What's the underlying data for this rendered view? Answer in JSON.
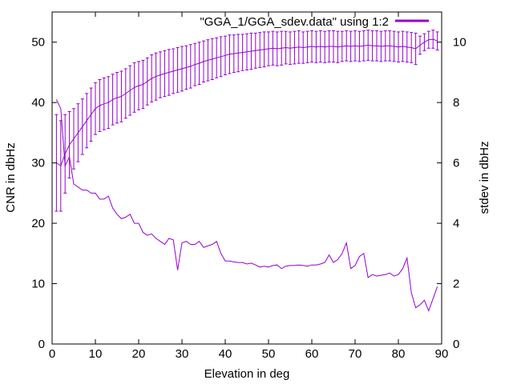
{
  "chart_data": {
    "type": "line",
    "title": "",
    "xlabel": "Elevation in deg",
    "ylabel": "CNR in dbHz",
    "y2label": "stdev in dbHz",
    "xlim": [
      0,
      90
    ],
    "ylim": [
      0,
      55
    ],
    "y2lim": [
      0,
      11
    ],
    "xticks": [
      0,
      10,
      20,
      30,
      40,
      50,
      60,
      70,
      80,
      90
    ],
    "yticks": [
      0,
      10,
      20,
      30,
      40,
      50
    ],
    "y2ticks": [
      0,
      2,
      4,
      6,
      8,
      10
    ],
    "grid": false,
    "legend_position": "top-right",
    "color": "#9400d3",
    "series": [
      {
        "name": "\"GGA_1/GGA_sdev.data\" using 1:2",
        "style": "errorbars",
        "axis": "y1",
        "x": [
          1,
          2,
          3,
          4,
          5,
          6,
          7,
          8,
          9,
          10,
          11,
          12,
          13,
          14,
          15,
          16,
          17,
          18,
          19,
          20,
          21,
          22,
          23,
          24,
          25,
          26,
          27,
          28,
          29,
          30,
          31,
          32,
          33,
          34,
          35,
          36,
          37,
          38,
          39,
          40,
          41,
          42,
          43,
          44,
          45,
          46,
          47,
          48,
          49,
          50,
          51,
          52,
          53,
          54,
          55,
          56,
          57,
          58,
          59,
          60,
          61,
          62,
          63,
          64,
          65,
          66,
          67,
          68,
          69,
          70,
          71,
          72,
          73,
          74,
          75,
          76,
          77,
          78,
          79,
          80,
          81,
          82,
          83,
          84,
          85,
          86,
          87,
          88,
          89
        ],
        "y": [
          30.0,
          29.5,
          31.5,
          33.0,
          34.0,
          35.0,
          36.0,
          37.0,
          38.0,
          39.0,
          39.5,
          39.8,
          40.0,
          40.5,
          40.8,
          41.0,
          41.5,
          42.0,
          42.5,
          42.8,
          43.0,
          43.5,
          44.0,
          44.3,
          44.6,
          44.8,
          45.0,
          45.2,
          45.4,
          45.6,
          45.8,
          46.0,
          46.3,
          46.5,
          46.8,
          47.0,
          47.2,
          47.4,
          47.6,
          47.8,
          48.0,
          48.1,
          48.2,
          48.3,
          48.4,
          48.5,
          48.6,
          48.7,
          48.8,
          48.9,
          49.0,
          48.9,
          49.0,
          49.1,
          49.0,
          49.1,
          49.2,
          49.1,
          49.2,
          49.3,
          49.2,
          49.3,
          49.2,
          49.3,
          49.3,
          49.2,
          49.3,
          49.4,
          49.3,
          49.4,
          49.3,
          49.4,
          49.5,
          49.4,
          49.4,
          49.3,
          49.4,
          49.4,
          49.3,
          49.2,
          49.3,
          49.2,
          49.1,
          48.9,
          49.5,
          50.0,
          50.4,
          50.5,
          50.2
        ],
        "err": [
          8.0,
          7.5,
          6.5,
          5.5,
          5.0,
          4.8,
          4.6,
          4.5,
          4.4,
          4.3,
          4.3,
          4.3,
          4.3,
          4.2,
          4.2,
          4.2,
          4.1,
          4.1,
          4.1,
          4.0,
          4.0,
          3.9,
          3.9,
          3.9,
          3.8,
          3.8,
          3.8,
          3.7,
          3.7,
          3.7,
          3.6,
          3.6,
          3.5,
          3.5,
          3.4,
          3.4,
          3.4,
          3.3,
          3.3,
          3.2,
          3.2,
          3.1,
          3.1,
          3.0,
          3.0,
          3.0,
          2.9,
          2.9,
          2.9,
          2.8,
          2.8,
          2.8,
          2.8,
          2.7,
          2.7,
          2.7,
          2.7,
          2.6,
          2.6,
          2.6,
          2.6,
          2.6,
          2.6,
          2.6,
          2.6,
          2.6,
          2.5,
          2.5,
          2.5,
          2.5,
          2.5,
          2.5,
          2.5,
          2.5,
          2.5,
          2.5,
          2.5,
          2.5,
          2.5,
          2.5,
          2.5,
          2.5,
          2.5,
          2.6,
          1.5,
          1.4,
          1.4,
          1.5,
          1.5
        ]
      },
      {
        "name": "",
        "style": "lines",
        "axis": "y2",
        "x": [
          1,
          2,
          3,
          4,
          5,
          6,
          7,
          8,
          9,
          10,
          11,
          12,
          13,
          14,
          15,
          16,
          17,
          18,
          19,
          20,
          21,
          22,
          23,
          24,
          25,
          26,
          27,
          28,
          29,
          30,
          31,
          32,
          33,
          34,
          35,
          36,
          37,
          38,
          39,
          40,
          41,
          42,
          43,
          44,
          45,
          46,
          47,
          48,
          49,
          50,
          51,
          52,
          53,
          54,
          55,
          56,
          57,
          58,
          59,
          60,
          61,
          62,
          63,
          64,
          65,
          66,
          67,
          68,
          69,
          70,
          71,
          72,
          73,
          74,
          75,
          76,
          77,
          78,
          79,
          80,
          81,
          82,
          83,
          84,
          85,
          86,
          87,
          88,
          89
        ],
        "y": [
          8.1,
          7.8,
          5.9,
          6.2,
          5.3,
          5.2,
          5.1,
          5.1,
          5.0,
          5.0,
          4.8,
          4.8,
          4.9,
          4.5,
          4.3,
          4.15,
          4.2,
          4.3,
          4.0,
          4.0,
          3.7,
          3.6,
          3.65,
          3.5,
          3.4,
          3.3,
          3.5,
          3.45,
          2.45,
          3.35,
          3.4,
          3.3,
          3.3,
          3.4,
          3.2,
          3.25,
          3.3,
          3.4,
          3.0,
          2.75,
          2.75,
          2.72,
          2.7,
          2.7,
          2.65,
          2.68,
          2.62,
          2.55,
          2.58,
          2.55,
          2.6,
          2.62,
          2.5,
          2.58,
          2.6,
          2.6,
          2.62,
          2.6,
          2.58,
          2.62,
          2.62,
          2.65,
          2.7,
          2.95,
          2.7,
          2.8,
          3.0,
          3.35,
          2.5,
          2.6,
          2.9,
          3.0,
          2.2,
          2.3,
          2.25,
          2.28,
          2.3,
          2.35,
          2.25,
          2.3,
          2.5,
          2.85,
          1.7,
          1.2,
          1.3,
          1.45,
          1.1,
          1.5,
          1.9
        ]
      }
    ]
  }
}
